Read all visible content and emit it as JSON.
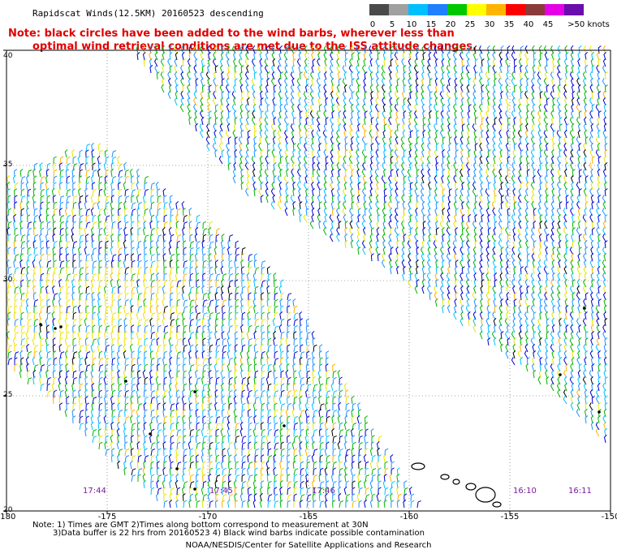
{
  "title": "Rapidscat Winds(12.5KM) 20160523 descending",
  "note_line1": "Note: black circles have been added to the wind barbs, wherever less than",
  "note_line2": "optimal wind retrieval conditions are met due to the ISS attitude changes.",
  "scale": {
    "labels": [
      "0",
      "5",
      "10",
      "15",
      "20",
      "25",
      "30",
      "35",
      "40",
      "45",
      ">50 knots"
    ],
    "colors": [
      "#4a4a4a",
      "#a0a0a0",
      "#00bfff",
      "#1e7fff",
      "#00c800",
      "#ffff00",
      "#ffb400",
      "#ff0000",
      "#8b3a3a",
      "#e600e6",
      "#6a0dad"
    ]
  },
  "axes": {
    "lat_labels": [
      "40",
      "35",
      "30",
      "25",
      "20"
    ],
    "lon_labels": [
      "-180",
      "-175",
      "-170",
      "-165",
      "-160",
      "-155",
      "-150"
    ]
  },
  "time_labels": [
    "17:44",
    "17:45",
    "17:46",
    "16:10",
    "16:11"
  ],
  "footer": {
    "line1": "Note: 1) Times are GMT 2)Times along bottom correspond to measurement at 30N",
    "line2": "3)Data buffer is 22 hrs from 20160523 4) Black wind barbs indicate possible contamination",
    "credit": "NOAA/NESDIS/Center for Satellite Applications and Research"
  }
}
